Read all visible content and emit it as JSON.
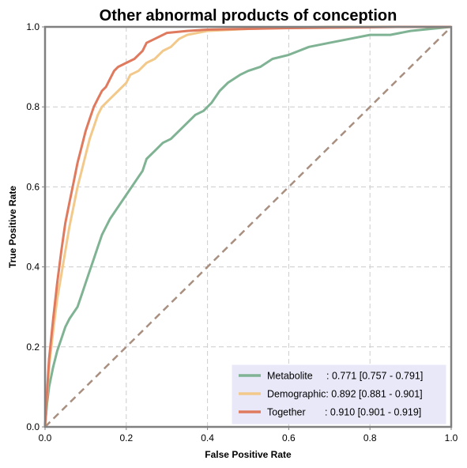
{
  "chart_data": {
    "type": "line",
    "title": "Other abnormal products of conception",
    "xlabel": "False Positive Rate",
    "ylabel": "True Positive Rate",
    "xlim": [
      0,
      1
    ],
    "ylim": [
      0,
      1
    ],
    "x_ticks": [
      "0.0",
      "0.2",
      "0.4",
      "0.6",
      "0.8",
      "1.0"
    ],
    "y_ticks": [
      "0.0",
      "0.2",
      "0.4",
      "0.6",
      "0.8",
      "1.0"
    ],
    "grid": true,
    "legend_position": "lower-right",
    "reference_line": {
      "points": [
        [
          0,
          0
        ],
        [
          1,
          1
        ]
      ],
      "color": "#a88f80",
      "style": "dashed"
    },
    "series": [
      {
        "label": "Metabolite     : 0.771 [0.757 - 0.791]",
        "color": "#7fb394",
        "points": [
          [
            0,
            0
          ],
          [
            0.005,
            0.06
          ],
          [
            0.01,
            0.1
          ],
          [
            0.02,
            0.15
          ],
          [
            0.03,
            0.19
          ],
          [
            0.04,
            0.22
          ],
          [
            0.05,
            0.25
          ],
          [
            0.06,
            0.27
          ],
          [
            0.08,
            0.3
          ],
          [
            0.09,
            0.33
          ],
          [
            0.1,
            0.36
          ],
          [
            0.11,
            0.39
          ],
          [
            0.12,
            0.42
          ],
          [
            0.13,
            0.45
          ],
          [
            0.14,
            0.48
          ],
          [
            0.15,
            0.5
          ],
          [
            0.16,
            0.52
          ],
          [
            0.18,
            0.55
          ],
          [
            0.2,
            0.58
          ],
          [
            0.22,
            0.61
          ],
          [
            0.24,
            0.64
          ],
          [
            0.25,
            0.67
          ],
          [
            0.27,
            0.69
          ],
          [
            0.29,
            0.71
          ],
          [
            0.31,
            0.72
          ],
          [
            0.33,
            0.74
          ],
          [
            0.35,
            0.76
          ],
          [
            0.37,
            0.78
          ],
          [
            0.39,
            0.79
          ],
          [
            0.41,
            0.81
          ],
          [
            0.43,
            0.84
          ],
          [
            0.45,
            0.86
          ],
          [
            0.48,
            0.88
          ],
          [
            0.5,
            0.89
          ],
          [
            0.53,
            0.9
          ],
          [
            0.56,
            0.92
          ],
          [
            0.6,
            0.93
          ],
          [
            0.65,
            0.95
          ],
          [
            0.7,
            0.96
          ],
          [
            0.75,
            0.97
          ],
          [
            0.8,
            0.98
          ],
          [
            0.85,
            0.98
          ],
          [
            0.9,
            0.99
          ],
          [
            0.95,
            0.995
          ],
          [
            1,
            1
          ]
        ]
      },
      {
        "label": "Demographic: 0.892 [0.881 - 0.901]",
        "color": "#f2c98a",
        "points": [
          [
            0,
            0
          ],
          [
            0.005,
            0.08
          ],
          [
            0.01,
            0.15
          ],
          [
            0.02,
            0.24
          ],
          [
            0.03,
            0.32
          ],
          [
            0.04,
            0.38
          ],
          [
            0.05,
            0.44
          ],
          [
            0.06,
            0.5
          ],
          [
            0.07,
            0.55
          ],
          [
            0.08,
            0.6
          ],
          [
            0.09,
            0.64
          ],
          [
            0.1,
            0.68
          ],
          [
            0.11,
            0.72
          ],
          [
            0.12,
            0.75
          ],
          [
            0.13,
            0.78
          ],
          [
            0.14,
            0.8
          ],
          [
            0.16,
            0.82
          ],
          [
            0.18,
            0.84
          ],
          [
            0.2,
            0.86
          ],
          [
            0.21,
            0.88
          ],
          [
            0.23,
            0.89
          ],
          [
            0.25,
            0.91
          ],
          [
            0.27,
            0.92
          ],
          [
            0.29,
            0.94
          ],
          [
            0.31,
            0.95
          ],
          [
            0.33,
            0.97
          ],
          [
            0.35,
            0.98
          ],
          [
            0.4,
            0.99
          ],
          [
            0.5,
            0.995
          ],
          [
            0.6,
            0.998
          ],
          [
            0.7,
            1
          ],
          [
            1,
            1
          ]
        ]
      },
      {
        "label": "Together       : 0.910 [0.901 - 0.919]",
        "color": "#e07a5f",
        "points": [
          [
            0,
            0
          ],
          [
            0.005,
            0.09
          ],
          [
            0.01,
            0.17
          ],
          [
            0.02,
            0.27
          ],
          [
            0.03,
            0.36
          ],
          [
            0.04,
            0.44
          ],
          [
            0.05,
            0.51
          ],
          [
            0.06,
            0.56
          ],
          [
            0.07,
            0.61
          ],
          [
            0.08,
            0.66
          ],
          [
            0.09,
            0.7
          ],
          [
            0.1,
            0.74
          ],
          [
            0.11,
            0.77
          ],
          [
            0.12,
            0.8
          ],
          [
            0.13,
            0.82
          ],
          [
            0.14,
            0.84
          ],
          [
            0.15,
            0.85
          ],
          [
            0.16,
            0.87
          ],
          [
            0.17,
            0.89
          ],
          [
            0.18,
            0.9
          ],
          [
            0.2,
            0.91
          ],
          [
            0.22,
            0.92
          ],
          [
            0.24,
            0.94
          ],
          [
            0.25,
            0.96
          ],
          [
            0.27,
            0.97
          ],
          [
            0.3,
            0.985
          ],
          [
            0.35,
            0.99
          ],
          [
            0.4,
            0.993
          ],
          [
            0.5,
            0.995
          ],
          [
            0.6,
            0.997
          ],
          [
            0.7,
            0.998
          ],
          [
            0.8,
            0.999
          ],
          [
            0.87,
            1
          ],
          [
            1,
            1
          ]
        ]
      }
    ]
  }
}
